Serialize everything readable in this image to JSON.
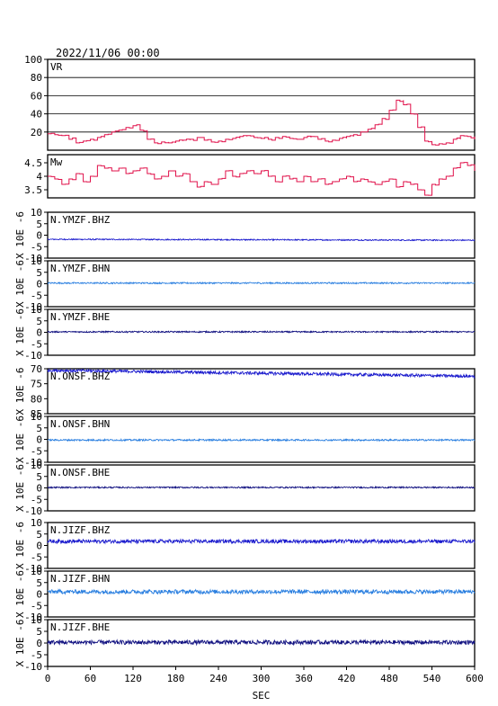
{
  "header": {
    "datetime": "2022/11/06 00:00"
  },
  "chart_data": {
    "type": "line",
    "x_axis": {
      "label": "SEC",
      "range": [
        0,
        600
      ],
      "ticks": [
        0,
        60,
        120,
        180,
        240,
        300,
        360,
        420,
        480,
        540,
        600
      ]
    },
    "y_axis_label": "X 10E -6",
    "panels": [
      {
        "id": "vr",
        "label": "VR",
        "range": [
          0,
          100
        ],
        "ticks": [
          20,
          40,
          60,
          80,
          100
        ],
        "grid": true,
        "style": "step",
        "color": "#e0104a",
        "x": [
          0,
          10,
          20,
          30,
          40,
          50,
          60,
          70,
          80,
          90,
          100,
          110,
          120,
          130,
          140,
          150,
          160,
          170,
          180,
          190,
          200,
          210,
          220,
          230,
          240,
          250,
          260,
          270,
          280,
          290,
          300,
          310,
          320,
          330,
          340,
          350,
          360,
          370,
          380,
          390,
          400,
          410,
          420,
          430,
          440,
          450,
          460,
          470,
          480,
          490,
          500,
          510,
          520,
          530,
          540,
          550,
          560,
          570,
          580,
          590,
          600
        ],
        "values": [
          18,
          17,
          16,
          12,
          8,
          10,
          12,
          14,
          17,
          20,
          22,
          25,
          27,
          22,
          12,
          8,
          9,
          8,
          10,
          11,
          12,
          14,
          11,
          9,
          10,
          12,
          13,
          15,
          16,
          14,
          13,
          12,
          14,
          15,
          13,
          12,
          14,
          15,
          12,
          10,
          11,
          13,
          15,
          17,
          20,
          23,
          28,
          35,
          44,
          55,
          50,
          40,
          25,
          10,
          6,
          7,
          8,
          12,
          16,
          15,
          12
        ]
      },
      {
        "id": "mw",
        "label": "Mw",
        "range": [
          3.2,
          4.8
        ],
        "ticks": [
          3.5,
          4.0,
          4.5
        ],
        "grid": false,
        "style": "step",
        "color": "#e0104a",
        "x": [
          0,
          10,
          20,
          30,
          40,
          50,
          60,
          70,
          80,
          90,
          100,
          110,
          120,
          130,
          140,
          150,
          160,
          170,
          180,
          190,
          200,
          210,
          220,
          230,
          240,
          250,
          260,
          270,
          280,
          290,
          300,
          310,
          320,
          330,
          340,
          350,
          360,
          370,
          380,
          390,
          400,
          410,
          420,
          430,
          440,
          450,
          460,
          470,
          480,
          490,
          500,
          510,
          520,
          530,
          540,
          550,
          560,
          570,
          580,
          590,
          600
        ],
        "values": [
          4.0,
          3.9,
          3.7,
          3.9,
          4.1,
          3.8,
          4.0,
          4.4,
          4.3,
          4.2,
          4.3,
          4.1,
          4.2,
          4.3,
          4.1,
          3.9,
          4.0,
          4.2,
          4.0,
          4.1,
          3.8,
          3.6,
          3.8,
          3.7,
          3.9,
          4.2,
          4.0,
          4.1,
          4.2,
          4.1,
          4.2,
          4.0,
          3.8,
          4.0,
          3.9,
          3.8,
          4.0,
          3.8,
          3.9,
          3.7,
          3.8,
          3.9,
          4.0,
          3.8,
          3.9,
          3.8,
          3.7,
          3.8,
          3.9,
          3.6,
          3.8,
          3.7,
          3.5,
          3.3,
          3.7,
          3.9,
          4.0,
          4.3,
          4.5,
          4.4,
          4.2
        ]
      },
      {
        "id": "ymzf-bhz",
        "label": "N.YMZF.BHZ",
        "range": [
          -10,
          10
        ],
        "ticks": [
          -10,
          -5,
          0,
          5,
          10
        ],
        "style": "noise",
        "color": "#1a1acd",
        "base_start": -1.8,
        "base_end": -2.2,
        "amplitude": 0.25
      },
      {
        "id": "ymzf-bhn",
        "label": "N.YMZF.BHN",
        "range": [
          -10,
          10
        ],
        "ticks": [
          -10,
          -5,
          0,
          5,
          10
        ],
        "style": "noise",
        "color": "#2a7fe0",
        "base_start": 0.3,
        "base_end": 0.3,
        "amplitude": 0.3
      },
      {
        "id": "ymzf-bhe",
        "label": "N.YMZF.BHE",
        "range": [
          -10,
          10
        ],
        "ticks": [
          -10,
          -5,
          0,
          5,
          10
        ],
        "style": "noise",
        "color": "#101080",
        "base_start": 0.2,
        "base_end": 0.2,
        "amplitude": 0.3
      },
      {
        "id": "onsf-bhz",
        "label": "N.ONSF.BHZ",
        "range": [
          -85,
          -70
        ],
        "ticks": [
          -85,
          -80,
          -75,
          -70
        ],
        "tick_labels": [
          "85",
          "80",
          "75",
          "70"
        ],
        "style": "noise",
        "color": "#1a1acd",
        "base_start": -70.5,
        "base_end": -72.5,
        "amplitude": 0.5
      },
      {
        "id": "onsf-bhn",
        "label": "N.ONSF.BHN",
        "range": [
          -10,
          10
        ],
        "ticks": [
          -10,
          -5,
          0,
          5,
          10
        ],
        "style": "noise",
        "color": "#2a7fe0",
        "base_start": -0.3,
        "base_end": -0.3,
        "amplitude": 0.35
      },
      {
        "id": "onsf-bhe",
        "label": "N.ONSF.BHE",
        "range": [
          -10,
          10
        ],
        "ticks": [
          -10,
          -5,
          0,
          5,
          10
        ],
        "style": "noise",
        "color": "#101080",
        "base_start": 0.2,
        "base_end": 0.2,
        "amplitude": 0.3
      },
      {
        "id": "jizf-bhz",
        "label": "N.JIZF.BHZ",
        "range": [
          -10,
          10
        ],
        "ticks": [
          -10,
          -5,
          0,
          5,
          10
        ],
        "style": "noise",
        "color": "#1a1acd",
        "base_start": 1.8,
        "base_end": 1.8,
        "amplitude": 0.8
      },
      {
        "id": "jizf-bhn",
        "label": "N.JIZF.BHN",
        "range": [
          -10,
          10
        ],
        "ticks": [
          -10,
          -5,
          0,
          5,
          10
        ],
        "style": "noise",
        "color": "#2a7fe0",
        "base_start": 1.0,
        "base_end": 1.0,
        "amplitude": 0.9
      },
      {
        "id": "jizf-bhe",
        "label": "N.JIZF.BHE",
        "range": [
          -10,
          10
        ],
        "ticks": [
          -10,
          -5,
          0,
          5,
          10
        ],
        "style": "noise",
        "color": "#101080",
        "base_start": 0.3,
        "base_end": 0.3,
        "amplitude": 0.9
      }
    ]
  }
}
